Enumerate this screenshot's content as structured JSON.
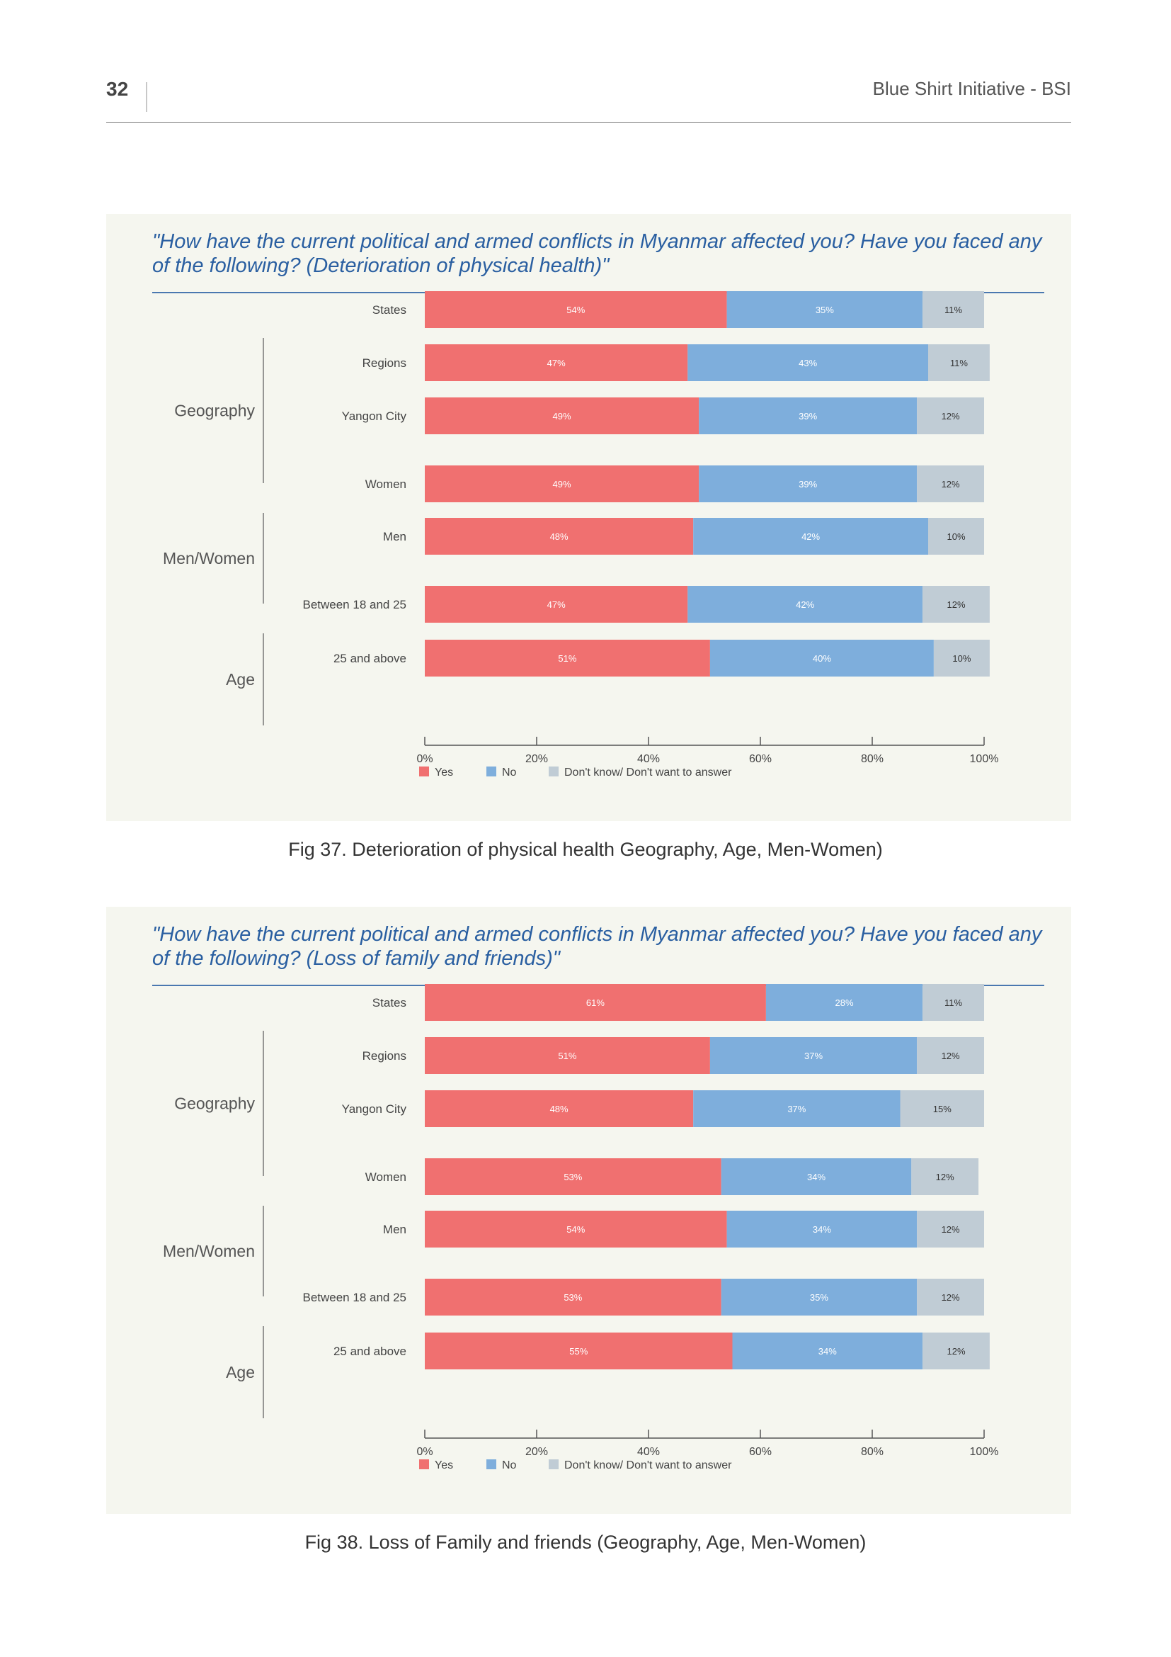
{
  "header": {
    "page_number": "32",
    "publication": "Blue Shirt Initiative - BSI"
  },
  "charts": [
    {
      "question": "\"How have the current political and armed conflicts in Myanmar affected you? Have you faced any of the following? (Deterioration of physical health)\"",
      "caption": "Fig 37. Deterioration of physical health Geography, Age, Men-Women)"
    },
    {
      "question": "\"How have the current political and armed conflicts in Myanmar affected you? Have you faced any of the following? (Loss of family and friends)\"",
      "caption": "Fig 38. Loss of Family and friends (Geography, Age, Men-Women)"
    }
  ],
  "chart_data": [
    {
      "type": "bar",
      "orientation": "horizontal",
      "stacked": true,
      "groups": [
        {
          "label": "Geography",
          "categories": [
            "States",
            "Regions",
            "Yangon City"
          ]
        },
        {
          "label": "Men/Women",
          "categories": [
            "Women",
            "Men"
          ]
        },
        {
          "label": "Age",
          "categories": [
            "Between 18 and 25",
            "25 and above"
          ]
        }
      ],
      "categories": [
        "States",
        "Regions",
        "Yangon City",
        "Women",
        "Men",
        "Between 18 and 25",
        "25 and above"
      ],
      "series": [
        {
          "name": "Yes",
          "color": "#f07070",
          "values": [
            54,
            47,
            49,
            49,
            48,
            47,
            51
          ]
        },
        {
          "name": "No",
          "color": "#7eaedc",
          "values": [
            35,
            43,
            39,
            39,
            42,
            42,
            40
          ]
        },
        {
          "name": "Don't know/ Don't want to answer",
          "color": "#c0ccd5",
          "values": [
            11,
            11,
            12,
            12,
            10,
            12,
            10
          ]
        }
      ],
      "xlim": [
        0,
        100
      ],
      "xticks": [
        "0%",
        "20%",
        "40%",
        "60%",
        "80%",
        "100%"
      ],
      "legend": "bottom-left"
    },
    {
      "type": "bar",
      "orientation": "horizontal",
      "stacked": true,
      "groups": [
        {
          "label": "Geography",
          "categories": [
            "States",
            "Regions",
            "Yangon City"
          ]
        },
        {
          "label": "Men/Women",
          "categories": [
            "Women",
            "Men"
          ]
        },
        {
          "label": "Age",
          "categories": [
            "Between 18 and 25",
            "25 and above"
          ]
        }
      ],
      "categories": [
        "States",
        "Regions",
        "Yangon City",
        "Women",
        "Men",
        "Between 18 and 25",
        "25 and above"
      ],
      "series": [
        {
          "name": "Yes",
          "color": "#f07070",
          "values": [
            61,
            51,
            48,
            53,
            54,
            53,
            55
          ]
        },
        {
          "name": "No",
          "color": "#7eaedc",
          "values": [
            28,
            37,
            37,
            34,
            34,
            35,
            34
          ]
        },
        {
          "name": "Don't know/ Don't want to answer",
          "color": "#c0ccd5",
          "values": [
            11,
            12,
            15,
            12,
            12,
            12,
            12
          ]
        }
      ],
      "xlim": [
        0,
        100
      ],
      "xticks": [
        "0%",
        "20%",
        "40%",
        "60%",
        "80%",
        "100%"
      ],
      "legend": "bottom-left"
    }
  ]
}
